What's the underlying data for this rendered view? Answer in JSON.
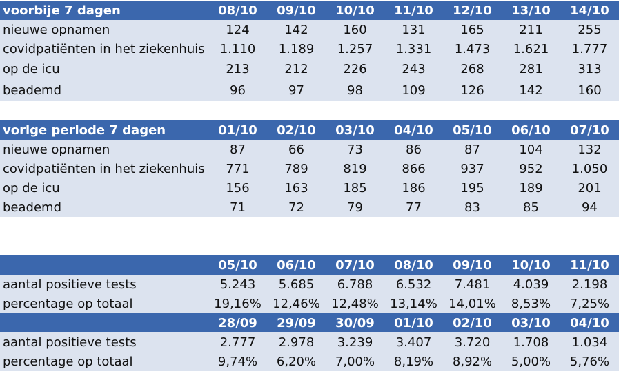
{
  "tables": [
    {
      "header": {
        "label": "voorbije 7 dagen",
        "dates": [
          "08/10",
          "09/10",
          "10/10",
          "11/10",
          "12/10",
          "13/10",
          "14/10"
        ]
      },
      "rows": [
        {
          "label": "nieuwe opnamen",
          "values": [
            "124",
            "142",
            "160",
            "131",
            "165",
            "211",
            "255"
          ]
        },
        {
          "label": "covidpatiënten in het ziekenhuis",
          "values": [
            "1.110",
            "1.189",
            "1.257",
            "1.331",
            "1.473",
            "1.621",
            "1.777"
          ]
        },
        {
          "label": "op de icu",
          "values": [
            "213",
            "212",
            "226",
            "243",
            "268",
            "281",
            "313"
          ]
        },
        {
          "label": "beademd",
          "values": [
            "96",
            "97",
            "98",
            "109",
            "126",
            "142",
            "160"
          ]
        }
      ]
    },
    {
      "header": {
        "label": "vorige periode 7 dagen",
        "dates": [
          "01/10",
          "02/10",
          "03/10",
          "04/10",
          "05/10",
          "06/10",
          "07/10"
        ]
      },
      "rows": [
        {
          "label": "nieuwe opnamen",
          "values": [
            "87",
            "66",
            "73",
            "86",
            "87",
            "104",
            "132"
          ]
        },
        {
          "label": "covidpatiënten in het ziekenhuis",
          "values": [
            "771",
            "789",
            "819",
            "866",
            "937",
            "952",
            "1.050"
          ]
        },
        {
          "label": "op de icu",
          "values": [
            "156",
            "163",
            "185",
            "186",
            "195",
            "189",
            "201"
          ]
        },
        {
          "label": "beademd",
          "values": [
            "71",
            "72",
            "79",
            "77",
            "83",
            "85",
            "94"
          ]
        }
      ]
    },
    {
      "header": {
        "label": "",
        "dates": [
          "05/10",
          "06/10",
          "07/10",
          "08/10",
          "09/10",
          "10/10",
          "11/10"
        ]
      },
      "rows": [
        {
          "label": "aantal positieve tests",
          "values": [
            "5.243",
            "5.685",
            "6.788",
            "6.532",
            "7.481",
            "4.039",
            "2.198"
          ]
        },
        {
          "label": "percentage op totaal",
          "values": [
            "19,16%",
            "12,46%",
            "12,48%",
            "13,14%",
            "14,01%",
            "8,53%",
            "7,25%"
          ]
        }
      ]
    },
    {
      "header": {
        "label": "",
        "dates": [
          "28/09",
          "29/09",
          "30/09",
          "01/10",
          "02/10",
          "03/10",
          "04/10"
        ]
      },
      "rows": [
        {
          "label": "aantal positieve tests",
          "values": [
            "2.777",
            "2.978",
            "3.239",
            "3.407",
            "3.720",
            "1.708",
            "1.034"
          ]
        },
        {
          "label": "percentage op totaal",
          "values": [
            "9,74%",
            "6,20%",
            "7,00%",
            "8,19%",
            "8,92%",
            "5,00%",
            "5,76%"
          ]
        }
      ]
    }
  ],
  "colors": {
    "header_bg": "#3b67ad",
    "header_text": "#ffffff",
    "row_bg": "#dce3ef"
  }
}
